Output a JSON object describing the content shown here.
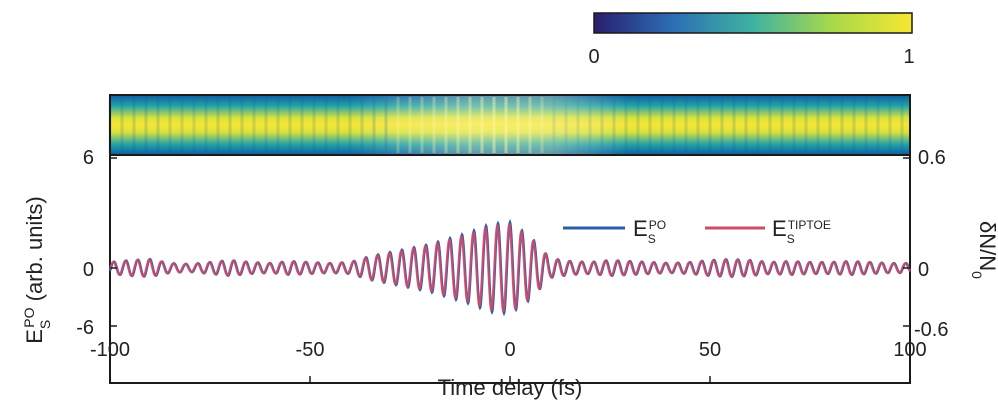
{
  "chart_data": {
    "type": "line",
    "xlabel": "Time delay (fs)",
    "ylabel_left": {
      "main": "E",
      "sub": "S",
      "sup": "PO",
      "unit": " (arb. units)"
    },
    "ylabel_right": {
      "main": "δN/N",
      "sub": "0"
    },
    "xlim": [
      -100,
      100
    ],
    "ylim_left": [
      -6,
      6
    ],
    "ylim_right": [
      -0.6,
      0.6
    ],
    "xticks": [
      "-100",
      "-50",
      "0",
      "50",
      "100"
    ],
    "yticks_left": [
      "6",
      "0",
      "-6"
    ],
    "yticks_right": [
      "0.6",
      "0",
      "-0.6"
    ],
    "series": [
      {
        "legend_main": "E",
        "legend_sub": "S",
        "legend_sup": "PO",
        "color": "#2b5fa8"
      },
      {
        "legend_main": "E",
        "legend_sub": "S",
        "legend_sup": "TIPTOE",
        "color": "#d04a6a"
      }
    ],
    "waveform": {
      "period_fs": 3.0,
      "envelope": [
        [
          -100,
          0.3
        ],
        [
          -95,
          0.4
        ],
        [
          -90,
          0.45
        ],
        [
          -85,
          0.25
        ],
        [
          -80,
          0.2
        ],
        [
          -75,
          0.3
        ],
        [
          -70,
          0.4
        ],
        [
          -65,
          0.3
        ],
        [
          -60,
          0.25
        ],
        [
          -55,
          0.35
        ],
        [
          -50,
          0.3
        ],
        [
          -45,
          0.25
        ],
        [
          -40,
          0.3
        ],
        [
          -35,
          0.6
        ],
        [
          -30,
          0.8
        ],
        [
          -25,
          1.0
        ],
        [
          -20,
          1.2
        ],
        [
          -15,
          1.5
        ],
        [
          -10,
          1.8
        ],
        [
          -5,
          2.2
        ],
        [
          0,
          2.3
        ],
        [
          5,
          1.6
        ],
        [
          10,
          0.5
        ],
        [
          15,
          0.35
        ],
        [
          20,
          0.3
        ],
        [
          25,
          0.4
        ],
        [
          30,
          0.35
        ],
        [
          35,
          0.3
        ],
        [
          40,
          0.25
        ],
        [
          45,
          0.3
        ],
        [
          50,
          0.4
        ],
        [
          55,
          0.45
        ],
        [
          60,
          0.4
        ],
        [
          65,
          0.3
        ],
        [
          70,
          0.35
        ],
        [
          75,
          0.3
        ],
        [
          80,
          0.3
        ],
        [
          85,
          0.35
        ],
        [
          90,
          0.3
        ],
        [
          95,
          0.25
        ],
        [
          100,
          0.25
        ]
      ]
    },
    "colorbar": {
      "ticks": [
        "0",
        "1"
      ],
      "colors": [
        "#2a1e6e",
        "#2c6fb5",
        "#3fb3a0",
        "#a8d94a",
        "#f6e730"
      ]
    }
  }
}
